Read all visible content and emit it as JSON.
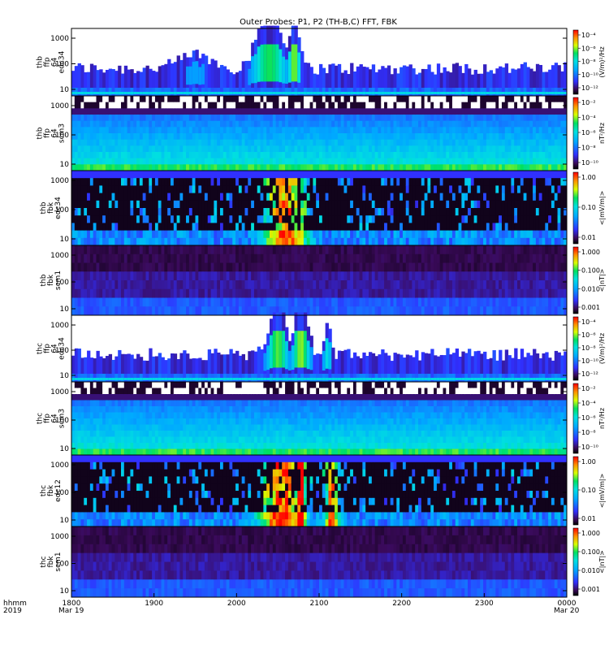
{
  "chart_data": {
    "type": "heatmap",
    "title": "Outer Probes: P1, P2 (TH-B,C) FFT, FBK",
    "x_ticks": [
      "1800",
      "1900",
      "2000",
      "2100",
      "2200",
      "2300",
      "0000"
    ],
    "x_range_hours": [
      18,
      24
    ],
    "x_axis_label": [
      "hhmm",
      "2019"
    ],
    "x_dates": [
      "Mar 19",
      "Mar 20"
    ],
    "panels": [
      {
        "id": "thb-ffp-64-edc34",
        "label_lines": [
          "thb",
          "ffp",
          "64",
          "edc34"
        ],
        "yticks": [
          "10",
          "100",
          "1000"
        ],
        "colorbar_label": "(V/m)²/Hz",
        "colorbar_ticks": [
          "10⁻⁴",
          "10⁻⁶",
          "10⁻⁸",
          "10⁻¹⁰",
          "10⁻¹²"
        ],
        "style": "sparse",
        "bursts": [
          {
            "t": 20.4,
            "w": 0.2,
            "a": 1.0
          },
          {
            "t": 20.7,
            "w": 0.07,
            "a": 1.2
          },
          {
            "t": 19.5,
            "w": 0.25,
            "a": 0.25
          }
        ]
      },
      {
        "id": "thb-ffp-64-scm3",
        "label_lines": [
          "thb",
          "ffp",
          "64",
          "scm3"
        ],
        "yticks": [
          "10",
          "100",
          "1000"
        ],
        "colorbar_label": "nT²/Hz",
        "colorbar_ticks": [
          "10⁻²",
          "10⁻⁴",
          "10⁻⁶",
          "10⁻⁸",
          "10⁻¹⁰"
        ],
        "style": "scm",
        "bursts": []
      },
      {
        "id": "thb-fbk-edc34",
        "label_lines": [
          "thb",
          "fbk",
          "edc34"
        ],
        "yticks": [
          "10",
          "100",
          "1000"
        ],
        "colorbar_label": "<|mV/m|>",
        "colorbar_ticks": [
          "1.00",
          "0.10",
          "0.01"
        ],
        "style": "fbk",
        "bursts": [
          {
            "t": 20.6,
            "w": 0.25,
            "a": 1.0
          }
        ]
      },
      {
        "id": "thb-fbk-scm1",
        "label_lines": [
          "thb",
          "fbk",
          "scm1"
        ],
        "yticks": [
          "10",
          "100",
          "1000"
        ],
        "colorbar_label": "<|nT|>",
        "colorbar_ticks": [
          "1.000",
          "0.100",
          "0.010",
          "0.001"
        ],
        "style": "fbkscm",
        "bursts": []
      },
      {
        "id": "thc-ffp-64-edc34",
        "label_lines": [
          "thc",
          "ffp",
          "64",
          "edc34"
        ],
        "yticks": [
          "10",
          "100",
          "1000"
        ],
        "colorbar_label": "(V/m)²/Hz",
        "colorbar_ticks": [
          "10⁻⁴",
          "10⁻⁶",
          "10⁻⁸",
          "10⁻¹⁰",
          "10⁻¹²"
        ],
        "style": "sparse",
        "bursts": [
          {
            "t": 20.5,
            "w": 0.12,
            "a": 1.1
          },
          {
            "t": 20.78,
            "w": 0.1,
            "a": 1.2
          },
          {
            "t": 21.1,
            "w": 0.05,
            "a": 0.6
          }
        ]
      },
      {
        "id": "thc-ffp-64-scm3",
        "label_lines": [
          "thc",
          "ffp",
          "64",
          "scm3"
        ],
        "yticks": [
          "10",
          "100",
          "1000"
        ],
        "colorbar_label": "nT²/Hz",
        "colorbar_ticks": [
          "10⁻²",
          "10⁻⁴",
          "10⁻⁶",
          "10⁻⁸",
          "10⁻¹⁰"
        ],
        "style": "scm",
        "bursts": []
      },
      {
        "id": "thc-fbk-edc12",
        "label_lines": [
          "thc",
          "fbk",
          "edc12"
        ],
        "yticks": [
          "10",
          "100",
          "1000"
        ],
        "colorbar_label": "<|mV/m|>",
        "colorbar_ticks": [
          "1.00",
          "0.10",
          "0.01"
        ],
        "style": "fbk",
        "bursts": [
          {
            "t": 20.55,
            "w": 0.25,
            "a": 1.1
          },
          {
            "t": 20.78,
            "w": 0.06,
            "a": 1.4
          },
          {
            "t": 21.15,
            "w": 0.08,
            "a": 1.0
          }
        ]
      },
      {
        "id": "thc-fbk-scm1",
        "label_lines": [
          "thc",
          "fbk",
          "scm1"
        ],
        "yticks": [
          "10",
          "100",
          "1000"
        ],
        "colorbar_label": "<|nT|>",
        "colorbar_ticks": [
          "1.000",
          "0.100",
          "0.010",
          "0.001"
        ],
        "style": "fbkscm",
        "bursts": []
      }
    ]
  }
}
